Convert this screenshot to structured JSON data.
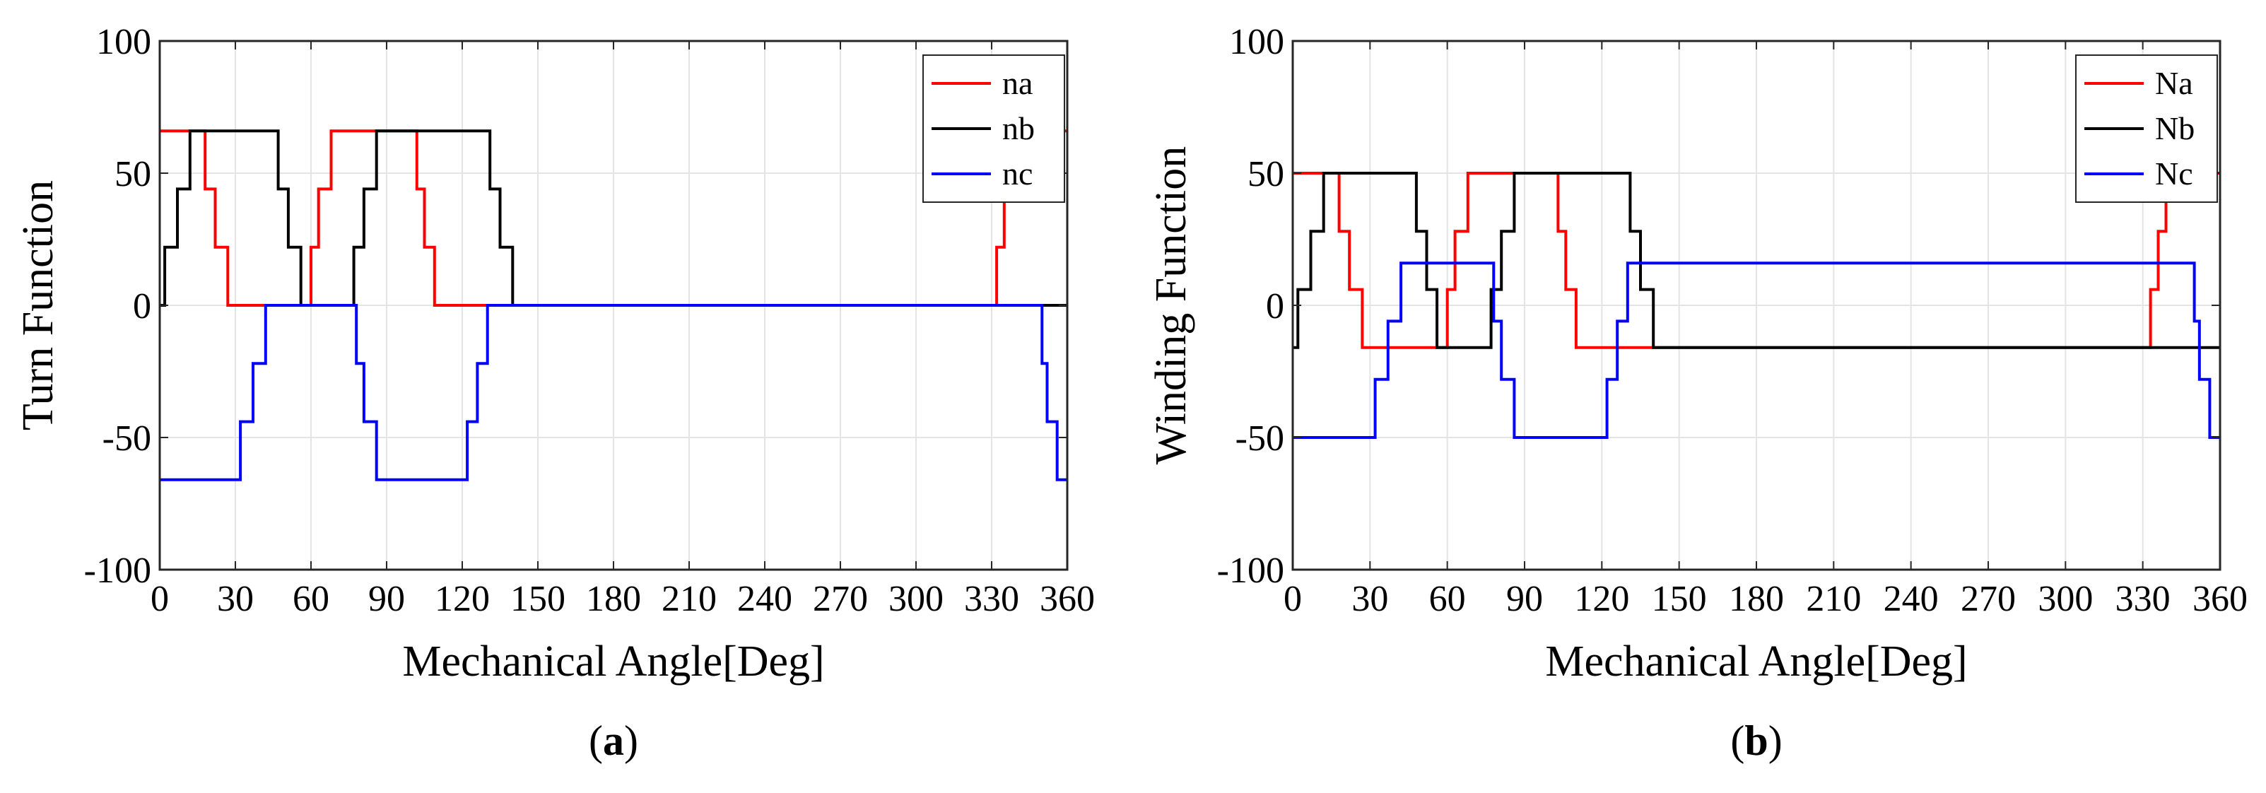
{
  "chart_data": [
    {
      "type": "line",
      "panel_caption": "a",
      "title": "",
      "xlabel": "Mechanical Angle[Deg]",
      "ylabel": "Turn Function",
      "xlim": [
        0,
        360
      ],
      "ylim": [
        -100,
        100
      ],
      "xticks": [
        "0",
        "30",
        "60",
        "90",
        "120",
        "150",
        "180",
        "210",
        "240",
        "270",
        "300",
        "330",
        "360"
      ],
      "yticks": [
        "-100",
        "-50",
        "0",
        "50",
        "100"
      ],
      "grid": true,
      "legend_position": "top-right",
      "series": [
        {
          "name": "na",
          "color": "#ff0000",
          "x": [
            0,
            15,
            15,
            18,
            18,
            22,
            22,
            27,
            27,
            60,
            60,
            63,
            63,
            68,
            68,
            73,
            73,
            102,
            102,
            105,
            105,
            109,
            109,
            114,
            114,
            332,
            332,
            335,
            335,
            338,
            338,
            343,
            343,
            360
          ],
          "y": [
            66,
            66,
            66,
            66,
            44,
            44,
            22,
            22,
            0,
            0,
            22,
            22,
            44,
            44,
            66,
            66,
            66,
            66,
            44,
            44,
            22,
            22,
            0,
            0,
            0,
            0,
            22,
            22,
            44,
            44,
            66,
            66,
            66,
            66
          ]
        },
        {
          "name": "nb",
          "color": "#000000",
          "x": [
            0,
            2,
            2,
            7,
            7,
            12,
            12,
            47,
            47,
            51,
            51,
            56,
            56,
            59,
            59,
            77,
            77,
            81,
            81,
            86,
            86,
            91,
            91,
            131,
            131,
            135,
            135,
            140,
            140,
            145,
            145,
            360
          ],
          "y": [
            0,
            0,
            22,
            22,
            44,
            44,
            66,
            66,
            44,
            44,
            22,
            22,
            0,
            0,
            0,
            0,
            22,
            22,
            44,
            44,
            66,
            66,
            66,
            66,
            44,
            44,
            22,
            22,
            0,
            0,
            0,
            0
          ]
        },
        {
          "name": "nc",
          "color": "#0000ff",
          "x": [
            0,
            32,
            32,
            37,
            37,
            42,
            42,
            45,
            45,
            78,
            78,
            81,
            81,
            86,
            86,
            90,
            90,
            122,
            122,
            126,
            126,
            130,
            130,
            134,
            134,
            350,
            350,
            352,
            352,
            356,
            356,
            360
          ],
          "y": [
            -66,
            -66,
            -44,
            -44,
            -22,
            -22,
            0,
            0,
            0,
            0,
            -22,
            -22,
            -44,
            -44,
            -66,
            -66,
            -66,
            -66,
            -44,
            -44,
            -22,
            -22,
            0,
            0,
            0,
            0,
            -22,
            -22,
            -44,
            -44,
            -66,
            -66
          ]
        }
      ]
    },
    {
      "type": "line",
      "panel_caption": "b",
      "title": "",
      "xlabel": "Mechanical Angle[Deg]",
      "ylabel": "Winding Function",
      "xlim": [
        0,
        360
      ],
      "ylim": [
        -100,
        100
      ],
      "xticks": [
        "0",
        "30",
        "60",
        "90",
        "120",
        "150",
        "180",
        "210",
        "240",
        "270",
        "300",
        "330",
        "360"
      ],
      "yticks": [
        "-100",
        "-50",
        "0",
        "50",
        "100"
      ],
      "grid": true,
      "legend_position": "top-right",
      "series": [
        {
          "name": "Na",
          "color": "#ff0000",
          "x": [
            0,
            15,
            15,
            18,
            18,
            22,
            22,
            27,
            27,
            60,
            60,
            63,
            63,
            68,
            68,
            73,
            73,
            103,
            103,
            106,
            106,
            110,
            110,
            115,
            115,
            333,
            333,
            336,
            336,
            339,
            339,
            344,
            344,
            360
          ],
          "y": [
            50,
            50,
            50,
            50,
            28,
            28,
            6,
            6,
            -16,
            -16,
            6,
            6,
            28,
            28,
            50,
            50,
            50,
            50,
            28,
            28,
            6,
            6,
            -16,
            -16,
            -16,
            -16,
            6,
            6,
            28,
            28,
            50,
            50,
            50,
            50
          ]
        },
        {
          "name": "Nb",
          "color": "#000000",
          "x": [
            0,
            2,
            2,
            7,
            7,
            12,
            12,
            48,
            48,
            52,
            52,
            56,
            56,
            59,
            59,
            77,
            77,
            81,
            81,
            86,
            86,
            91,
            91,
            131,
            131,
            135,
            135,
            140,
            140,
            145,
            145,
            360
          ],
          "y": [
            -16,
            -16,
            6,
            6,
            28,
            28,
            50,
            50,
            28,
            28,
            6,
            6,
            -16,
            -16,
            -16,
            -16,
            6,
            6,
            28,
            28,
            50,
            50,
            50,
            50,
            28,
            28,
            6,
            6,
            -16,
            -16,
            -16,
            -16
          ]
        },
        {
          "name": "Nc",
          "color": "#0000ff",
          "x": [
            0,
            32,
            32,
            37,
            37,
            42,
            42,
            45,
            45,
            78,
            78,
            81,
            81,
            86,
            86,
            90,
            90,
            122,
            122,
            126,
            126,
            130,
            130,
            134,
            134,
            350,
            350,
            352,
            352,
            356,
            356,
            360
          ],
          "y": [
            -50,
            -50,
            -28,
            -28,
            -6,
            -6,
            16,
            16,
            16,
            16,
            -6,
            -6,
            -28,
            -28,
            -50,
            -50,
            -50,
            -50,
            -28,
            -28,
            -6,
            -6,
            16,
            16,
            16,
            16,
            -6,
            -6,
            -28,
            -28,
            -50,
            -50
          ]
        }
      ]
    }
  ]
}
